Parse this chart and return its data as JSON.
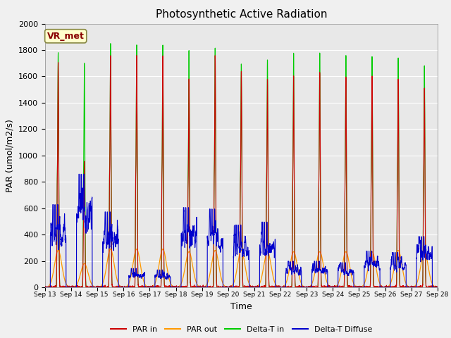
{
  "title": "Photosynthetic Active Radiation",
  "xlabel": "Time",
  "ylabel": "PAR (umol/m2/s)",
  "ylim": [
    0,
    2000
  ],
  "legend_label": "VR_met",
  "series_labels": [
    "PAR in",
    "PAR out",
    "Delta-T in",
    "Delta-T Diffuse"
  ],
  "series_colors": [
    "#cc0000",
    "#ff9900",
    "#00cc00",
    "#0000cc"
  ],
  "xtick_labels": [
    "Sep 13",
    "Sep 14",
    "Sep 15",
    "Sep 16",
    "Sep 17",
    "Sep 18",
    "Sep 19",
    "Sep 20",
    "Sep 21",
    "Sep 22",
    "Sep 23",
    "Sep 24",
    "Sep 25",
    "Sep 26",
    "Sep 27",
    "Sep 28"
  ],
  "background_color": "#e8e8e8",
  "fig_background": "#f0f0f0",
  "n_days": 15,
  "par_in_peaks": [
    1700,
    950,
    1760,
    1760,
    1760,
    1580,
    1760,
    1640,
    1580,
    1610,
    1630,
    1600,
    1610,
    1580,
    1510
  ],
  "par_out_peaks": [
    280,
    180,
    290,
    290,
    290,
    270,
    280,
    280,
    270,
    270,
    270,
    270,
    270,
    280,
    270
  ],
  "delta_t_peaks": [
    1780,
    1700,
    1850,
    1840,
    1840,
    1800,
    1820,
    1700,
    1730,
    1780,
    1780,
    1760,
    1750,
    1740,
    1680
  ],
  "delta_t_diff_peaks": [
    570,
    780,
    520,
    130,
    120,
    550,
    540,
    430,
    450,
    180,
    180,
    170,
    250,
    240,
    350
  ]
}
